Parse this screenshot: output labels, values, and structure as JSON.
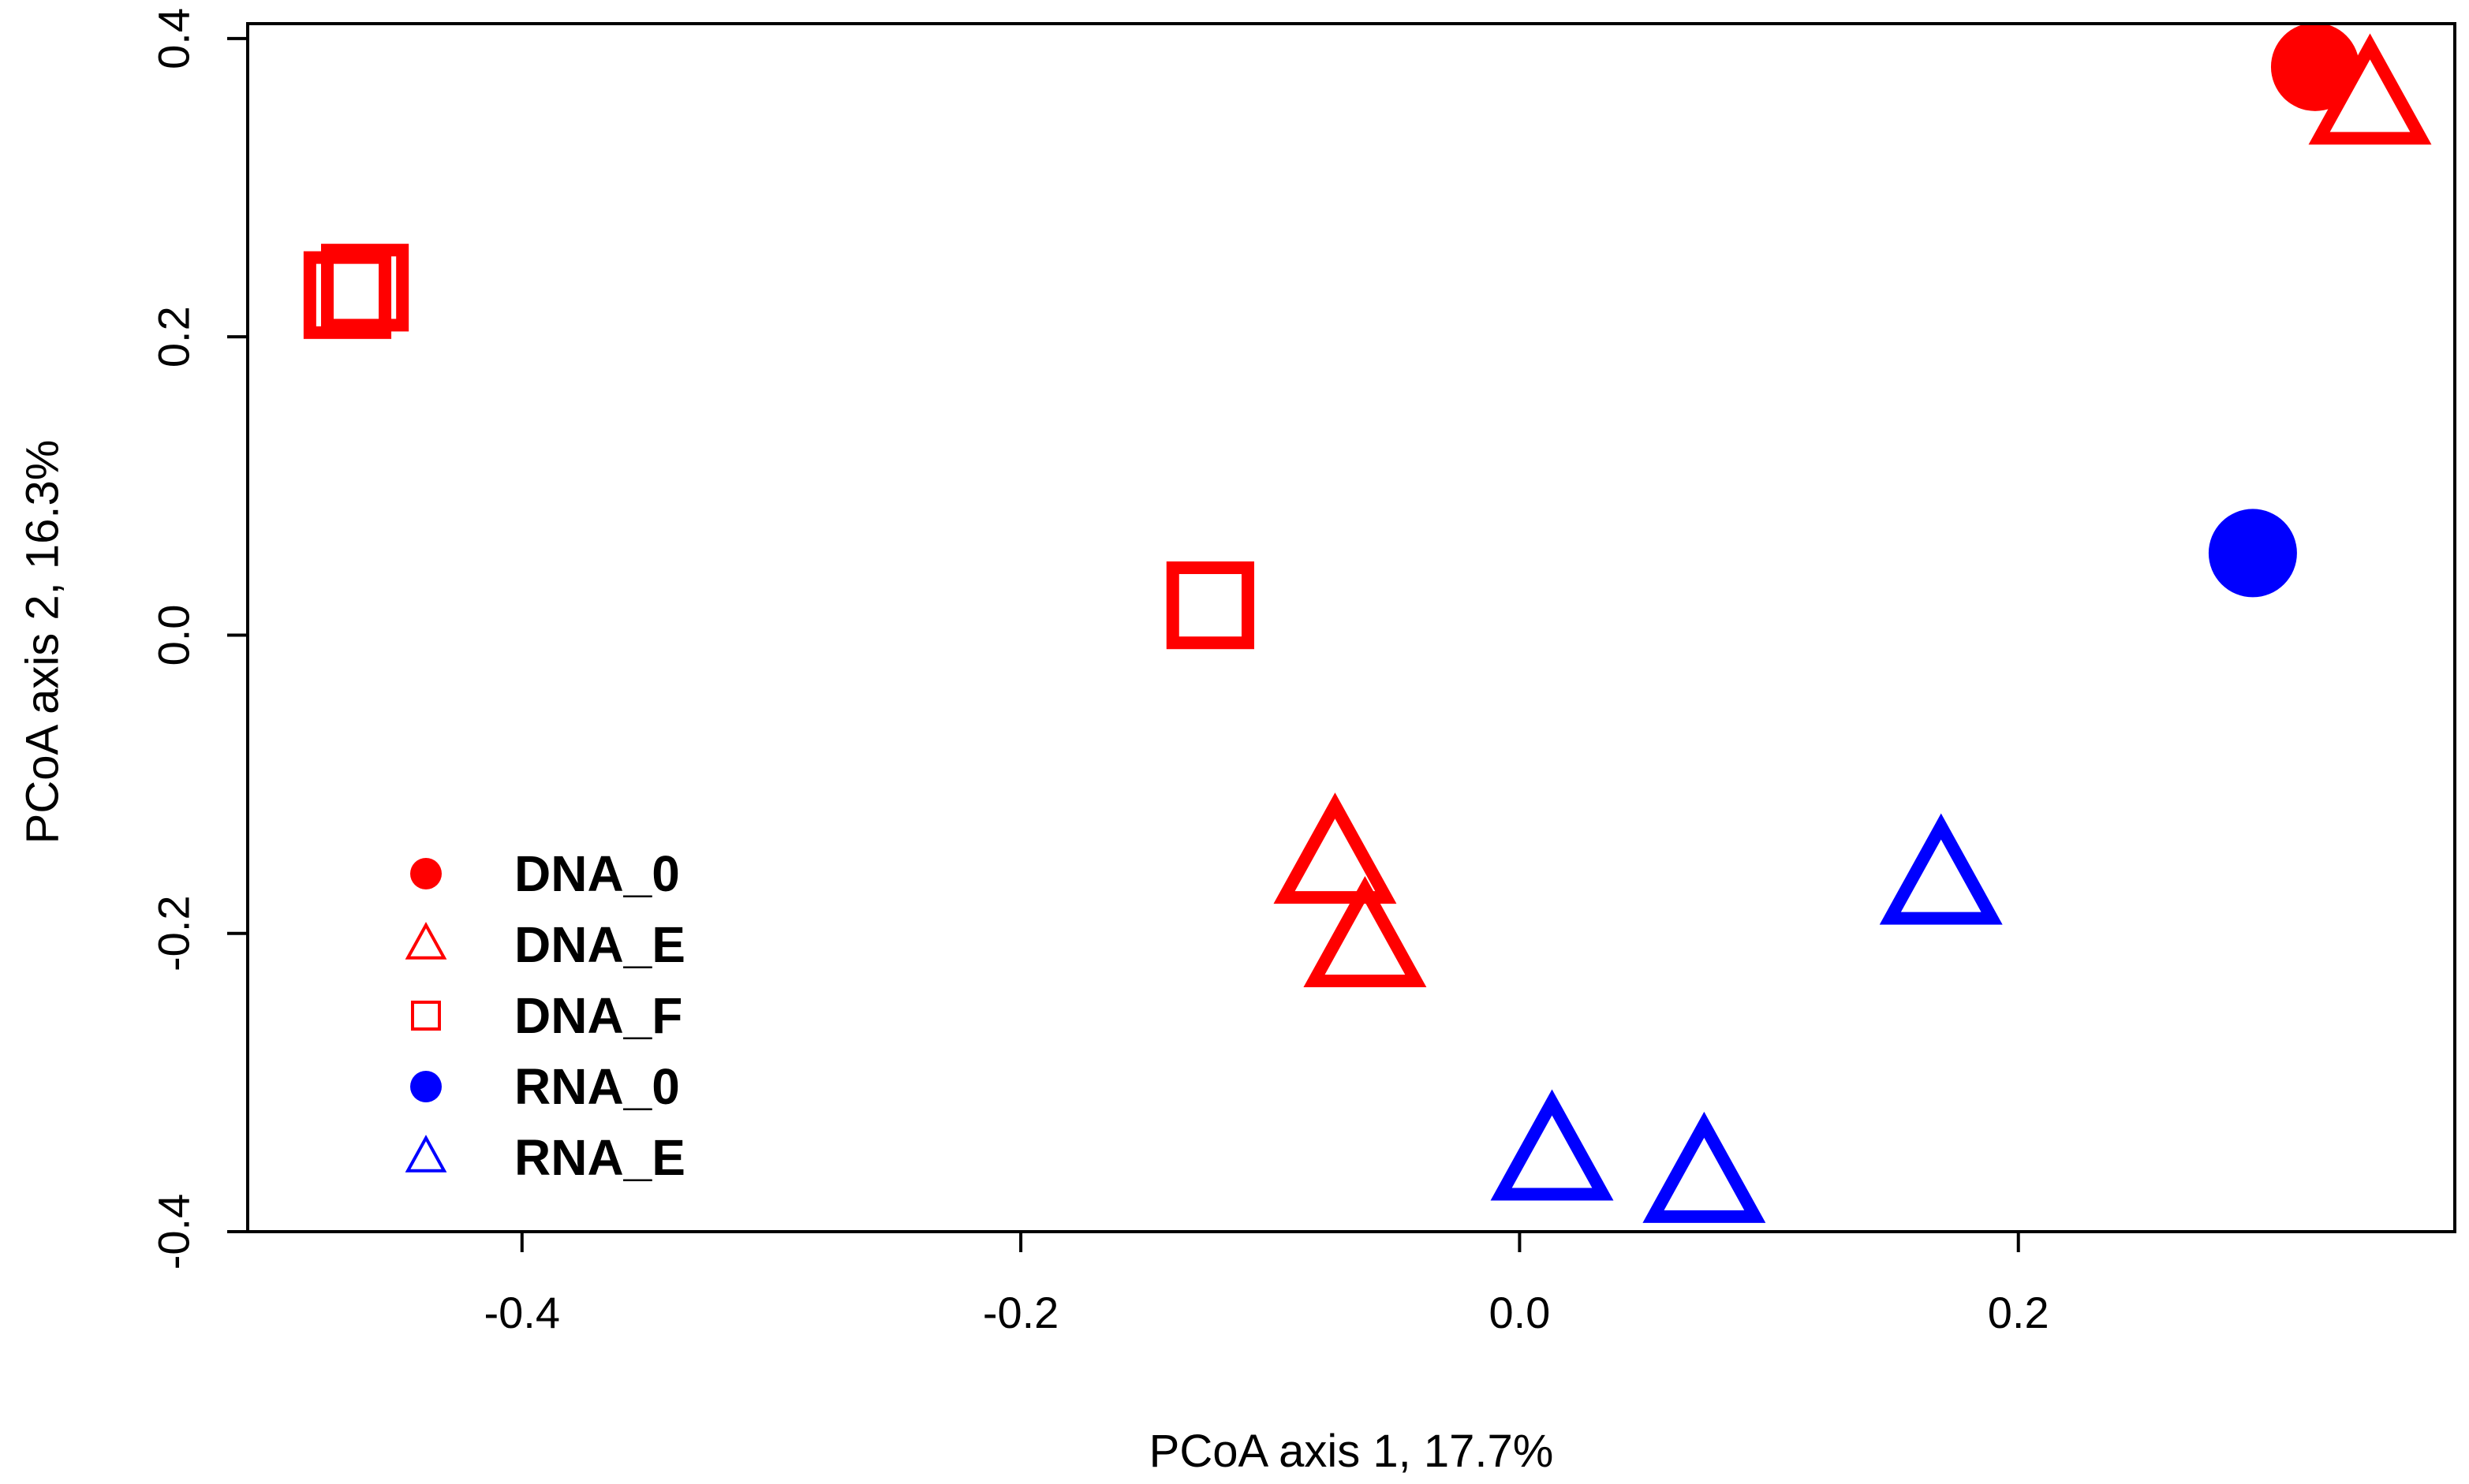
{
  "chart_data": {
    "type": "scatter",
    "title": "",
    "xlabel": "PCoA axis 1, 17.7%",
    "ylabel": "PCoA axis 2, 16.3%",
    "xlim": [
      -0.51,
      0.375
    ],
    "ylim": [
      -0.4,
      0.41
    ],
    "xticks": [
      -0.4,
      -0.2,
      0.0,
      0.2
    ],
    "xtick_labels": [
      "-0.4",
      "-0.2",
      "0.0",
      "0.2"
    ],
    "yticks": [
      -0.4,
      -0.2,
      0.0,
      0.2,
      0.4
    ],
    "ytick_labels": [
      "-0.4",
      "-0.2",
      "0.0",
      "0.2",
      "0.4"
    ],
    "legend_position": "bottom-left",
    "series": [
      {
        "name": "DNA_0",
        "color": "#ff0000",
        "marker": "filled-circle",
        "points": [
          {
            "x": 0.319,
            "y": 0.381
          }
        ]
      },
      {
        "name": "DNA_E",
        "color": "#ff0000",
        "marker": "open-triangle",
        "points": [
          {
            "x": 0.341,
            "y": 0.358
          },
          {
            "x": -0.074,
            "y": -0.151
          },
          {
            "x": -0.062,
            "y": -0.207
          }
        ]
      },
      {
        "name": "DNA_F",
        "color": "#ff0000",
        "marker": "open-square",
        "points": [
          {
            "x": -0.47,
            "y": 0.228
          },
          {
            "x": -0.463,
            "y": 0.233
          },
          {
            "x": -0.124,
            "y": 0.02
          }
        ]
      },
      {
        "name": "RNA_0",
        "color": "#0000ff",
        "marker": "filled-circle",
        "points": [
          {
            "x": 0.294,
            "y": 0.055
          }
        ]
      },
      {
        "name": "RNA_E",
        "color": "#0000ff",
        "marker": "open-triangle",
        "points": [
          {
            "x": 0.169,
            "y": -0.165
          },
          {
            "x": 0.013,
            "y": -0.35
          },
          {
            "x": 0.074,
            "y": -0.365
          }
        ]
      }
    ]
  }
}
